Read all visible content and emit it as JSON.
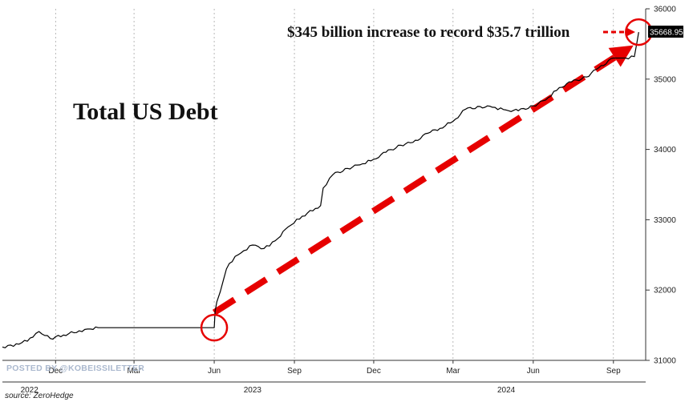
{
  "chart_data": {
    "type": "line",
    "title": "Total US Debt",
    "annotation": "$345 billion increase to record $35.7 trillion",
    "last_value_label": "35668.95",
    "ylim": [
      31000,
      36000
    ],
    "yticks": [
      31000,
      32000,
      33000,
      34000,
      35000,
      36000
    ],
    "xlim": [
      "2022-10-01",
      "2024-10-08"
    ],
    "month_ticks": [
      {
        "label": "Dec",
        "date": "2022-12-01"
      },
      {
        "label": "Mar",
        "date": "2023-03-01"
      },
      {
        "label": "Jun",
        "date": "2023-06-01"
      },
      {
        "label": "Sep",
        "date": "2023-09-01"
      },
      {
        "label": "Dec",
        "date": "2023-12-01"
      },
      {
        "label": "Mar",
        "date": "2024-03-01"
      },
      {
        "label": "Jun",
        "date": "2024-06-01"
      },
      {
        "label": "Sep",
        "date": "2024-09-01"
      }
    ],
    "year_labels": [
      {
        "label": "2022",
        "date": "2022-11-01"
      },
      {
        "label": "2023",
        "date": "2023-07-15"
      },
      {
        "label": "2024",
        "date": "2024-05-01"
      }
    ],
    "series": [
      {
        "x": [
          "2022-10-01",
          "2022-10-20",
          "2022-11-05",
          "2022-11-12",
          "2022-11-25",
          "2022-12-10",
          "2022-12-28",
          "2023-01-10",
          "2023-01-19",
          "2023-03-01",
          "2023-06-01",
          "2023-06-02",
          "2023-06-04",
          "2023-06-08",
          "2023-06-15",
          "2023-06-25",
          "2023-07-05",
          "2023-07-15",
          "2023-07-28",
          "2023-08-10",
          "2023-08-25",
          "2023-09-10",
          "2023-09-25",
          "2023-10-01",
          "2023-10-04",
          "2023-10-15",
          "2023-11-01",
          "2023-11-15",
          "2023-12-01",
          "2023-12-15",
          "2024-01-01",
          "2024-01-15",
          "2024-02-01",
          "2024-02-15",
          "2024-03-01",
          "2024-03-15",
          "2024-04-01",
          "2024-04-15",
          "2024-05-01",
          "2024-05-15",
          "2024-06-01",
          "2024-06-15",
          "2024-07-01",
          "2024-07-15",
          "2024-08-01",
          "2024-08-15",
          "2024-09-01",
          "2024-09-15",
          "2024-09-25",
          "2024-09-28",
          "2024-09-30"
        ],
        "values": [
          31190,
          31230,
          31330,
          31410,
          31310,
          31360,
          31420,
          31445,
          31465,
          31465,
          31465,
          31700,
          31830,
          31980,
          32300,
          32480,
          32560,
          32640,
          32590,
          32700,
          32900,
          33050,
          33160,
          33200,
          33450,
          33640,
          33730,
          33780,
          33860,
          33960,
          34060,
          34100,
          34230,
          34300,
          34400,
          34570,
          34610,
          34600,
          34560,
          34550,
          34620,
          34700,
          34880,
          34960,
          35030,
          35160,
          35300,
          35300,
          35320,
          35520,
          35668.95
        ]
      }
    ],
    "circles": [
      {
        "date": "2023-06-01",
        "value": 31465
      },
      {
        "date": "2024-09-30",
        "value": 35668.95
      }
    ],
    "trend_arrow": {
      "from": {
        "date": "2023-06-01",
        "value": 31680
      },
      "to": {
        "date": "2024-09-24",
        "value": 35480
      }
    },
    "colors": {
      "line": "#000000",
      "highlight": "#e60000",
      "last_label_bg": "#000000"
    },
    "grid": "vertical-dashed"
  },
  "footer": {
    "watermark": "POSTED BY @KOBEISSILETTER",
    "source": "source: ZeroHedge"
  }
}
